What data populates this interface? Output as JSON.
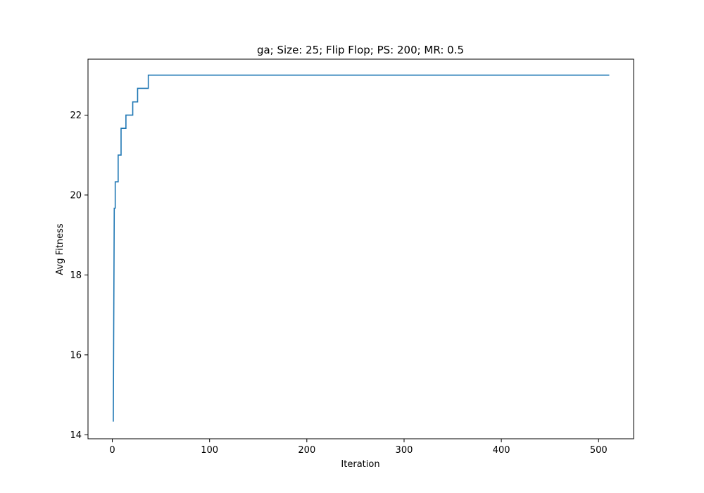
{
  "chart_data": {
    "type": "line",
    "title": "ga; Size: 25; Flip Flop; PS: 200; MR: 0.5",
    "xlabel": "Iteration",
    "ylabel": "Avg Fitness",
    "xlim": [
      -25,
      536
    ],
    "ylim": [
      13.9,
      23.4
    ],
    "xticks": [
      0,
      100,
      200,
      300,
      400,
      500
    ],
    "yticks": [
      14,
      16,
      18,
      20,
      22
    ],
    "grid": false,
    "legend": "none",
    "series": [
      {
        "color": "#1f77b4",
        "x": [
          1,
          2,
          2,
          3,
          3,
          4,
          4,
          6,
          6,
          8,
          8,
          9,
          9,
          10,
          10,
          14,
          14,
          16,
          16,
          21,
          21,
          23,
          23,
          26,
          26,
          35,
          35,
          37,
          37,
          511
        ],
        "y": [
          14.33,
          19.67,
          19.67,
          19.67,
          20.33,
          20.33,
          20.33,
          20.33,
          21.0,
          21.0,
          21.0,
          21.0,
          21.67,
          21.67,
          21.67,
          21.67,
          22.0,
          22.0,
          22.0,
          22.0,
          22.33,
          22.33,
          22.33,
          22.33,
          22.67,
          22.67,
          22.67,
          22.67,
          23.0,
          23.0
        ]
      }
    ]
  }
}
